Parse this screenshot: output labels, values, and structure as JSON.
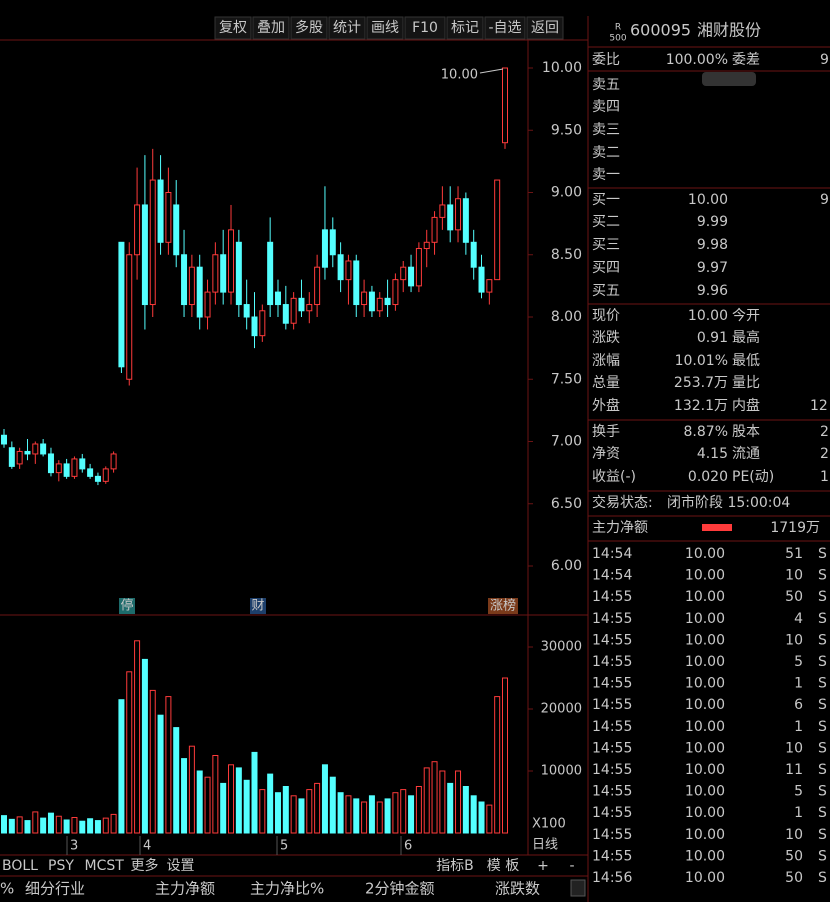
{
  "toolbar": [
    "复权",
    "叠加",
    "多股",
    "统计",
    "画线",
    "F10",
    "标记",
    "-自选",
    "返回"
  ],
  "header": {
    "badge_top": "R",
    "badge_bottom": "500",
    "code": "600095",
    "name": "湘财股份"
  },
  "weibi": {
    "label": "委比",
    "value": "100.00%",
    "label2": "委差",
    "value2": "9"
  },
  "sell": [
    "卖五",
    "卖四",
    "卖三",
    "卖二",
    "卖一"
  ],
  "buy": [
    [
      "买一",
      "10.00",
      "9"
    ],
    [
      "买二",
      "9.99"
    ],
    [
      "买三",
      "9.98"
    ],
    [
      "买四",
      "9.97"
    ],
    [
      "买五",
      "9.96"
    ]
  ],
  "stats": [
    [
      "现价",
      "10.00",
      "今开"
    ],
    [
      "涨跌",
      "0.91",
      "最高"
    ],
    [
      "涨幅",
      "10.01%",
      "最低"
    ],
    [
      "总量",
      "253.7万",
      "量比"
    ],
    [
      "外盘",
      "132.1万",
      "内盘",
      "12"
    ]
  ],
  "stats2": [
    [
      "换手",
      "8.87%",
      "股本",
      "2"
    ],
    [
      "净资",
      "4.15",
      "流通",
      "2"
    ],
    [
      "收益(-)",
      "0.020",
      "PE(动)",
      "1"
    ]
  ],
  "status": {
    "label": "交易状态:",
    "value": "闭市阶段 15:00:04"
  },
  "main_flow": {
    "label": "主力净额",
    "value": "1719万"
  },
  "trades": [
    [
      "14:54",
      "10.00",
      "51",
      "S"
    ],
    [
      "14:54",
      "10.00",
      "10",
      "S"
    ],
    [
      "14:55",
      "10.00",
      "50",
      "S"
    ],
    [
      "14:55",
      "10.00",
      "4",
      "S"
    ],
    [
      "14:55",
      "10.00",
      "10",
      "S"
    ],
    [
      "14:55",
      "10.00",
      "5",
      "S"
    ],
    [
      "14:55",
      "10.00",
      "1",
      "S"
    ],
    [
      "14:55",
      "10.00",
      "6",
      "S"
    ],
    [
      "14:55",
      "10.00",
      "1",
      "S"
    ],
    [
      "14:55",
      "10.00",
      "10",
      "S"
    ],
    [
      "14:55",
      "10.00",
      "11",
      "S"
    ],
    [
      "14:55",
      "10.00",
      "5",
      "S"
    ],
    [
      "14:55",
      "10.00",
      "1",
      "S"
    ],
    [
      "14:55",
      "10.00",
      "10",
      "S"
    ],
    [
      "14:55",
      "10.00",
      "50",
      "S"
    ],
    [
      "14:56",
      "10.00",
      "50",
      "S"
    ]
  ],
  "indicator_tabs": [
    "BOLL",
    "PSY",
    "MCST",
    "更多",
    "设置"
  ],
  "indicator_right": [
    "指标B",
    "模 板",
    "+",
    "-"
  ],
  "bottom_tabs": [
    "%",
    "细分行业",
    "主力净额",
    "主力净比%",
    "2分钟金额",
    "涨跌数"
  ],
  "chart_data": {
    "type": "candlestick",
    "ylim": [
      5.7,
      10.25
    ],
    "yticks": [
      {
        "value": 10,
        "label": "10.00"
      },
      {
        "value": 9.5,
        "label": "9.50"
      },
      {
        "value": 9,
        "label": "9.00"
      },
      {
        "value": 8.5,
        "label": "8.50"
      },
      {
        "value": 8,
        "label": "8.00"
      },
      {
        "value": 7.5,
        "label": "7.50"
      },
      {
        "value": 7,
        "label": "7.00"
      },
      {
        "value": 6.5,
        "label": "6.50"
      },
      {
        "value": 6,
        "label": "6.00"
      }
    ],
    "volume_ylim": [
      0,
      35000
    ],
    "volume_yticks": [
      10000,
      20000,
      30000
    ],
    "volume_unit": "X100",
    "period": "日线",
    "x_labels": [
      "3",
      "4",
      "5",
      "6"
    ],
    "annotation": "10.00",
    "markers": [
      "停",
      "财",
      "涨榜"
    ],
    "candles": [
      [
        7.05,
        7.1,
        6.95,
        6.98,
        2800
      ],
      [
        6.95,
        7.0,
        6.78,
        6.8,
        2200
      ],
      [
        6.82,
        6.95,
        6.78,
        6.92,
        2600
      ],
      [
        6.92,
        7.02,
        6.85,
        6.9,
        2000
      ],
      [
        6.9,
        7.0,
        6.82,
        6.98,
        3400
      ],
      [
        6.98,
        7.02,
        6.88,
        6.9,
        2400
      ],
      [
        6.9,
        6.95,
        6.72,
        6.75,
        3200
      ],
      [
        6.75,
        6.85,
        6.68,
        6.82,
        2700
      ],
      [
        6.82,
        6.86,
        6.7,
        6.72,
        2100
      ],
      [
        6.72,
        6.88,
        6.7,
        6.86,
        2500
      ],
      [
        6.86,
        6.9,
        6.75,
        6.78,
        1900
      ],
      [
        6.78,
        6.82,
        6.7,
        6.72,
        2300
      ],
      [
        6.72,
        6.75,
        6.65,
        6.68,
        2000
      ],
      [
        6.68,
        6.8,
        6.66,
        6.78,
        2400
      ],
      [
        6.78,
        6.92,
        6.75,
        6.9,
        3000
      ],
      [
        8.6,
        8.6,
        7.55,
        7.6,
        21500
      ],
      [
        7.5,
        8.6,
        7.45,
        8.5,
        26000
      ],
      [
        8.5,
        9.2,
        8.3,
        8.9,
        31000
      ],
      [
        8.9,
        9.3,
        7.9,
        8.1,
        28000
      ],
      [
        8.1,
        9.35,
        8.0,
        9.1,
        23000
      ],
      [
        9.1,
        9.3,
        8.5,
        8.6,
        19000
      ],
      [
        8.6,
        9.2,
        8.5,
        9.0,
        22000
      ],
      [
        8.9,
        9.1,
        8.4,
        8.5,
        17000
      ],
      [
        8.5,
        8.7,
        8.0,
        8.1,
        12000
      ],
      [
        8.1,
        8.5,
        8.0,
        8.4,
        14000
      ],
      [
        8.4,
        8.5,
        7.9,
        8.0,
        10000
      ],
      [
        8.0,
        8.3,
        7.9,
        8.2,
        9000
      ],
      [
        8.2,
        8.6,
        8.1,
        8.5,
        12500
      ],
      [
        8.5,
        8.7,
        8.1,
        8.2,
        8000
      ],
      [
        8.2,
        8.9,
        8.1,
        8.7,
        11000
      ],
      [
        8.6,
        8.7,
        8.0,
        8.1,
        10500
      ],
      [
        8.1,
        8.3,
        7.9,
        8.0,
        8500
      ],
      [
        8.0,
        8.2,
        7.75,
        7.85,
        13000
      ],
      [
        7.85,
        8.1,
        7.8,
        8.05,
        7000
      ],
      [
        8.6,
        8.8,
        8.0,
        8.1,
        9500
      ],
      [
        8.2,
        8.3,
        8.0,
        8.1,
        6500
      ],
      [
        8.1,
        8.25,
        7.9,
        7.95,
        7500
      ],
      [
        7.95,
        8.2,
        7.9,
        8.15,
        6000
      ],
      [
        8.15,
        8.3,
        8.0,
        8.05,
        5500
      ],
      [
        8.05,
        8.2,
        7.95,
        8.1,
        7000
      ],
      [
        8.1,
        8.5,
        8.0,
        8.4,
        8000
      ],
      [
        8.7,
        9.05,
        8.3,
        8.4,
        11000
      ],
      [
        8.7,
        8.8,
        8.4,
        8.5,
        9000
      ],
      [
        8.5,
        8.6,
        8.2,
        8.3,
        6500
      ],
      [
        8.3,
        8.5,
        8.1,
        8.45,
        6000
      ],
      [
        8.45,
        8.5,
        8.0,
        8.1,
        5500
      ],
      [
        8.1,
        8.3,
        8.0,
        8.2,
        5000
      ],
      [
        8.2,
        8.25,
        8.0,
        8.05,
        6000
      ],
      [
        8.05,
        8.2,
        8.0,
        8.15,
        5000
      ],
      [
        8.15,
        8.3,
        8.0,
        8.1,
        5500
      ],
      [
        8.1,
        8.35,
        8.05,
        8.3,
        6500
      ],
      [
        8.3,
        8.45,
        8.2,
        8.4,
        7000
      ],
      [
        8.4,
        8.5,
        8.2,
        8.25,
        6000
      ],
      [
        8.25,
        8.6,
        8.2,
        8.55,
        7500
      ],
      [
        8.55,
        8.7,
        8.4,
        8.6,
        10500
      ],
      [
        8.6,
        8.85,
        8.5,
        8.8,
        11500
      ],
      [
        8.8,
        9.05,
        8.7,
        8.9,
        10000
      ],
      [
        8.9,
        9.05,
        8.6,
        8.7,
        8000
      ],
      [
        8.7,
        9.05,
        8.6,
        8.95,
        10000
      ],
      [
        8.95,
        9.0,
        8.5,
        8.6,
        7500
      ],
      [
        8.6,
        8.7,
        8.3,
        8.4,
        6000
      ],
      [
        8.4,
        8.5,
        8.15,
        8.2,
        5000
      ],
      [
        8.2,
        8.3,
        8.1,
        8.3,
        4500
      ],
      [
        8.3,
        9.1,
        8.3,
        9.1,
        22000
      ],
      [
        9.4,
        10.0,
        9.35,
        10.0,
        25000
      ]
    ]
  }
}
